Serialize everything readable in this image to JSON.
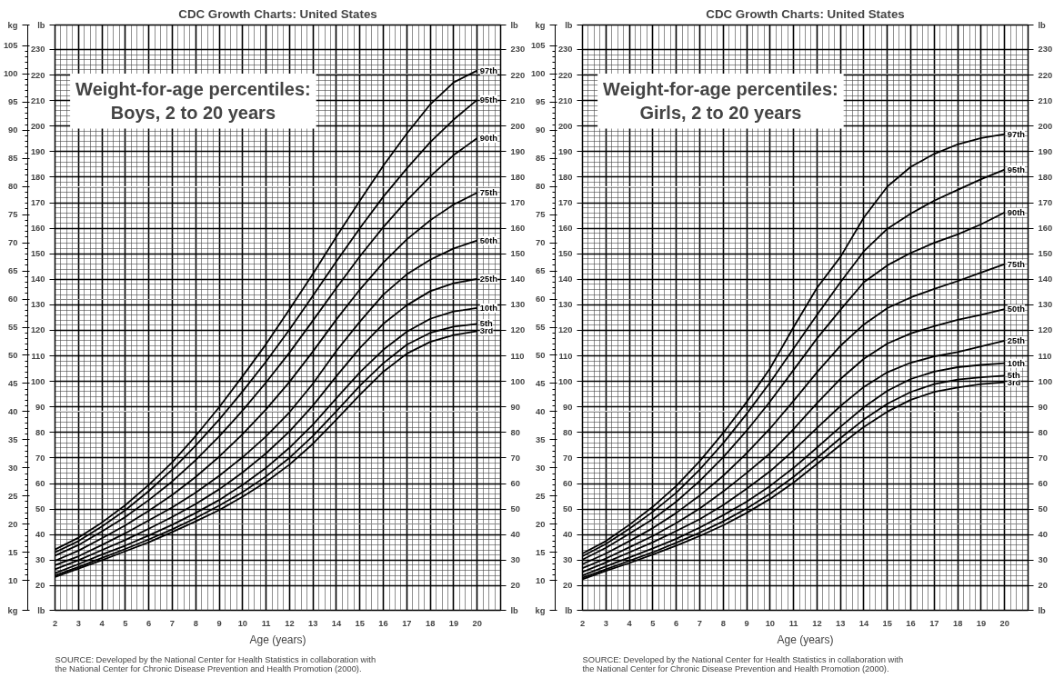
{
  "chart_data": [
    {
      "type": "line",
      "title": "CDC Growth Charts: United States",
      "subtitle": "Weight-for-age percentiles:\nBoys, 2 to 20 years",
      "xlabel": "Age (years)",
      "ylabel": "kg",
      "y2label": "lb",
      "annotations": [
        "SOURCE: Developed by the National Center for Health Statistics in collaboration with\nthe National Center for Chronic Disease Prevention and Health Promotion (2000)."
      ],
      "x": [
        2,
        3,
        4,
        5,
        6,
        7,
        8,
        9,
        10,
        11,
        12,
        13,
        14,
        15,
        16,
        17,
        18,
        19,
        20
      ],
      "xlim": [
        2,
        21
      ],
      "ylim": [
        4.7,
        108.7
      ],
      "y2lim": [
        10.36,
        239.6
      ],
      "y3lim": [
        10.36,
        239.6
      ],
      "y3label": "lb",
      "xticks": [
        2,
        3,
        4,
        5,
        6,
        7,
        8,
        9,
        10,
        11,
        12,
        13,
        14,
        15,
        16,
        17,
        18,
        19,
        20
      ],
      "yticks": [
        10,
        15,
        20,
        25,
        30,
        35,
        40,
        45,
        50,
        55,
        60,
        65,
        70,
        75,
        80,
        85,
        90,
        95,
        100,
        105
      ],
      "y2ticks": [
        20,
        30,
        40,
        50,
        60,
        70,
        80,
        90,
        100,
        110,
        120,
        130,
        140,
        150,
        160,
        170,
        180,
        190,
        200,
        210,
        220,
        230
      ],
      "y3ticks": [
        20,
        30,
        40,
        50,
        60,
        70,
        80,
        90,
        100,
        110,
        120,
        130,
        140,
        150,
        160,
        170,
        180,
        190,
        200,
        210,
        220,
        230
      ],
      "grid": true,
      "series": [
        {
          "name": "3rd",
          "color": "#000000",
          "values": [
            10.6,
            12.1,
            13.6,
            15.2,
            16.8,
            18.6,
            20.5,
            22.5,
            24.9,
            27.5,
            30.6,
            34.3,
            38.6,
            43.0,
            47.1,
            50.3,
            52.4,
            53.6,
            54.3
          ]
        },
        {
          "name": "5th",
          "color": "#000000",
          "values": [
            10.9,
            12.4,
            14.0,
            15.6,
            17.3,
            19.1,
            21.1,
            23.3,
            25.7,
            28.5,
            31.8,
            35.7,
            40.1,
            44.6,
            48.6,
            51.9,
            54.0,
            55.1,
            55.6
          ]
        },
        {
          "name": "10th",
          "color": "#000000",
          "values": [
            11.3,
            12.9,
            14.6,
            16.2,
            18.0,
            19.9,
            22.0,
            24.3,
            27.0,
            30.0,
            33.6,
            37.7,
            42.4,
            47.0,
            51.0,
            54.2,
            56.5,
            57.8,
            58.4
          ]
        },
        {
          "name": "25th",
          "color": "#000000",
          "values": [
            12.0,
            13.6,
            15.4,
            17.2,
            19.2,
            21.3,
            23.6,
            26.2,
            29.2,
            32.6,
            36.5,
            41.1,
            46.3,
            51.3,
            55.6,
            58.9,
            61.4,
            62.8,
            63.6
          ]
        },
        {
          "name": "50th",
          "color": "#000000",
          "values": [
            12.7,
            14.3,
            16.3,
            18.4,
            20.7,
            23.0,
            25.6,
            28.6,
            31.9,
            35.6,
            39.9,
            45.0,
            50.8,
            56.0,
            60.8,
            64.4,
            67.0,
            69.0,
            70.4
          ]
        },
        {
          "name": "75th",
          "color": "#000000",
          "values": [
            13.5,
            15.3,
            17.5,
            19.8,
            22.4,
            25.2,
            28.4,
            32.0,
            36.0,
            40.4,
            45.3,
            50.7,
            56.4,
            61.7,
            66.5,
            70.6,
            74.0,
            76.8,
            78.9
          ]
        },
        {
          "name": "90th",
          "color": "#000000",
          "values": [
            14.4,
            16.3,
            18.7,
            21.3,
            24.3,
            27.6,
            31.4,
            35.6,
            40.2,
            45.2,
            50.5,
            56.2,
            62.0,
            67.6,
            72.8,
            77.5,
            81.8,
            85.6,
            88.6
          ]
        },
        {
          "name": "95th",
          "color": "#000000",
          "values": [
            15.0,
            17.0,
            19.6,
            22.5,
            25.9,
            29.7,
            34.0,
            38.6,
            43.6,
            48.9,
            54.6,
            60.6,
            66.7,
            72.6,
            78.2,
            83.2,
            87.9,
            91.9,
            95.4
          ]
        },
        {
          "name": "97th",
          "color": "#000000",
          "values": [
            15.5,
            17.6,
            20.3,
            23.4,
            27.0,
            31.0,
            35.7,
            40.8,
            46.3,
            52.0,
            58.2,
            64.5,
            71.1,
            77.5,
            83.7,
            89.4,
            94.6,
            98.5,
            100.6
          ]
        }
      ]
    },
    {
      "type": "line",
      "title": "CDC Growth Charts: United States",
      "subtitle": "Weight-for-age percentiles:\nGirls, 2 to 20 years",
      "xlabel": "Age (years)",
      "ylabel": "kg",
      "y2label": "lb",
      "annotations": [
        "SOURCE: Developed by the National Center for Health Statistics in collaboration with\nthe National Center for Chronic Disease Prevention and Health Promotion (2000)."
      ],
      "x": [
        2,
        3,
        4,
        5,
        6,
        7,
        8,
        9,
        10,
        11,
        12,
        13,
        14,
        15,
        16,
        17,
        18,
        19,
        20
      ],
      "xlim": [
        2,
        21
      ],
      "ylim": [
        4.7,
        108.7
      ],
      "y2lim": [
        10.36,
        239.6
      ],
      "y3lim": [
        10.36,
        239.6
      ],
      "y3label": "lb",
      "xticks": [
        2,
        3,
        4,
        5,
        6,
        7,
        8,
        9,
        10,
        11,
        12,
        13,
        14,
        15,
        16,
        17,
        18,
        19,
        20
      ],
      "yticks": [
        10,
        15,
        20,
        25,
        30,
        35,
        40,
        45,
        50,
        55,
        60,
        65,
        70,
        75,
        80,
        85,
        90,
        95,
        100,
        105
      ],
      "y2ticks": [
        20,
        30,
        40,
        50,
        60,
        70,
        80,
        90,
        100,
        110,
        120,
        130,
        140,
        150,
        160,
        170,
        180,
        190,
        200,
        210,
        220,
        230
      ],
      "y3ticks": [
        20,
        30,
        40,
        50,
        60,
        70,
        80,
        90,
        100,
        110,
        120,
        130,
        140,
        150,
        160,
        170,
        180,
        190,
        200,
        210,
        220,
        230
      ],
      "grid": true,
      "series": [
        {
          "name": "3rd",
          "color": "#000000",
          "values": [
            10.2,
            11.7,
            13.1,
            14.6,
            16.2,
            17.9,
            19.8,
            22.0,
            24.5,
            27.4,
            30.7,
            34.1,
            37.3,
            40.0,
            42.1,
            43.5,
            44.3,
            44.9,
            45.2
          ]
        },
        {
          "name": "5th",
          "color": "#000000",
          "values": [
            10.5,
            12.0,
            13.5,
            15.0,
            16.7,
            18.5,
            20.5,
            22.8,
            25.4,
            28.4,
            31.8,
            35.3,
            38.6,
            41.4,
            43.5,
            44.9,
            45.7,
            46.1,
            46.4
          ]
        },
        {
          "name": "10th",
          "color": "#000000",
          "values": [
            10.9,
            12.5,
            14.1,
            15.7,
            17.4,
            19.4,
            21.6,
            24.0,
            26.8,
            30.0,
            33.6,
            37.3,
            40.8,
            43.7,
            45.8,
            47.1,
            47.9,
            48.3,
            48.6
          ]
        },
        {
          "name": "25th",
          "color": "#000000",
          "values": [
            11.5,
            13.2,
            15.0,
            16.8,
            18.8,
            20.9,
            23.4,
            26.3,
            29.4,
            33.1,
            37.1,
            41.0,
            44.4,
            47.0,
            48.7,
            49.8,
            50.6,
            51.6,
            52.6
          ]
        },
        {
          "name": "50th",
          "color": "#000000",
          "values": [
            12.2,
            13.9,
            15.9,
            17.9,
            20.2,
            22.8,
            25.8,
            29.1,
            32.6,
            36.9,
            41.5,
            45.8,
            49.4,
            52.1,
            53.9,
            55.2,
            56.3,
            57.2,
            58.2
          ]
        },
        {
          "name": "75th",
          "color": "#000000",
          "values": [
            12.9,
            14.8,
            17.0,
            19.3,
            22.0,
            25.1,
            28.6,
            32.6,
            37.0,
            41.9,
            47.0,
            51.7,
            55.5,
            58.4,
            60.3,
            61.8,
            63.2,
            64.7,
            66.2
          ]
        },
        {
          "name": "90th",
          "color": "#000000",
          "values": [
            13.7,
            15.8,
            18.3,
            20.9,
            24.0,
            27.7,
            31.9,
            36.6,
            41.8,
            47.4,
            53.0,
            58.1,
            63.0,
            66.0,
            68.2,
            70.0,
            71.5,
            73.3,
            75.4
          ]
        },
        {
          "name": "95th",
          "color": "#000000",
          "values": [
            14.3,
            16.5,
            19.2,
            22.2,
            25.6,
            29.7,
            34.4,
            39.6,
            45.2,
            51.2,
            57.2,
            63.0,
            68.5,
            72.5,
            75.2,
            77.5,
            79.4,
            81.3,
            83.0
          ]
        },
        {
          "name": "97th",
          "color": "#000000",
          "values": [
            14.8,
            17.0,
            19.9,
            23.1,
            26.8,
            31.2,
            36.2,
            41.7,
            47.7,
            55.0,
            62.0,
            67.5,
            74.5,
            80.0,
            83.5,
            85.8,
            87.5,
            88.6,
            89.3
          ]
        }
      ]
    }
  ]
}
